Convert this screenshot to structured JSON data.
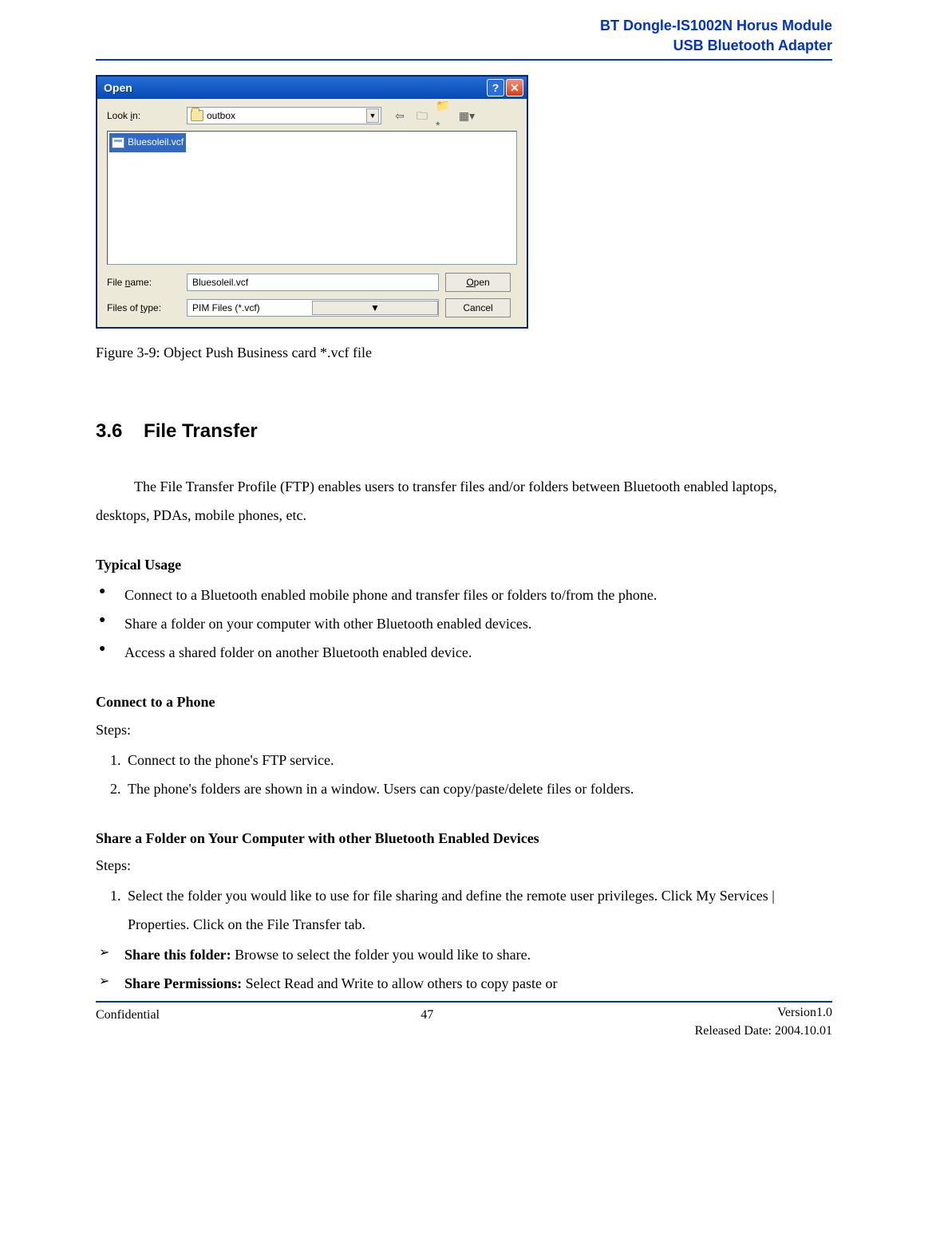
{
  "header": {
    "line1": "BT Dongle-IS1002N Horus Module",
    "line2": "USB Bluetooth Adapter"
  },
  "dialog": {
    "title": "Open",
    "look_in_label": "Look in:",
    "look_in_value": "outbox",
    "selected_file": "Bluesoleil.vcf",
    "file_name_label": "File name:",
    "file_name_value": "Bluesoleil.vcf",
    "files_of_type_label": "Files of type:",
    "files_of_type_value": "PIM Files (*.vcf)",
    "open_button": "Open",
    "cancel_button": "Cancel"
  },
  "caption": "Figure 3-9: Object Push Business card *.vcf file",
  "section": {
    "number": "3.6",
    "title": "File Transfer",
    "intro": "The File Transfer Profile (FTP) enables users to transfer files and/or folders between Bluetooth enabled laptops, desktops, PDAs, mobile phones, etc.",
    "typical_usage_heading": "Typical Usage",
    "bullets": [
      "Connect to a Bluetooth enabled mobile phone and transfer files or folders to/from the phone.",
      "Share a folder on your computer with other Bluetooth enabled devices.",
      "Access a shared folder on another Bluetooth enabled device."
    ],
    "connect_heading": "Connect to a Phone",
    "steps_label": "Steps:",
    "connect_steps": [
      "Connect to the phone's FTP service.",
      "The phone's folders are shown in a window. Users can copy/paste/delete files or folders."
    ],
    "share_heading": "Share a Folder on Your Computer with other Bluetooth Enabled Devices",
    "share_step1": "Select the folder you would like to use for file sharing and define the remote user privileges. Click My Services | Properties. Click on the File Transfer tab.",
    "share_this_label": "Share this folder:",
    "share_this_text": " Browse to select the folder you would like to share.",
    "share_perm_label": "Share Permissions:",
    "share_perm_text": " Select Read and Write to allow others to copy paste or"
  },
  "footer": {
    "left": "Confidential",
    "page": "47",
    "right1": "Version1.0",
    "right2": "Released Date: 2004.10.01"
  },
  "colors": {
    "header_blue": "#0033cc",
    "titlebar_blue": "#0a50c0",
    "close_red": "#d63c1a",
    "dialog_bg": "#ece9d8",
    "selection_blue": "#316ac5"
  }
}
